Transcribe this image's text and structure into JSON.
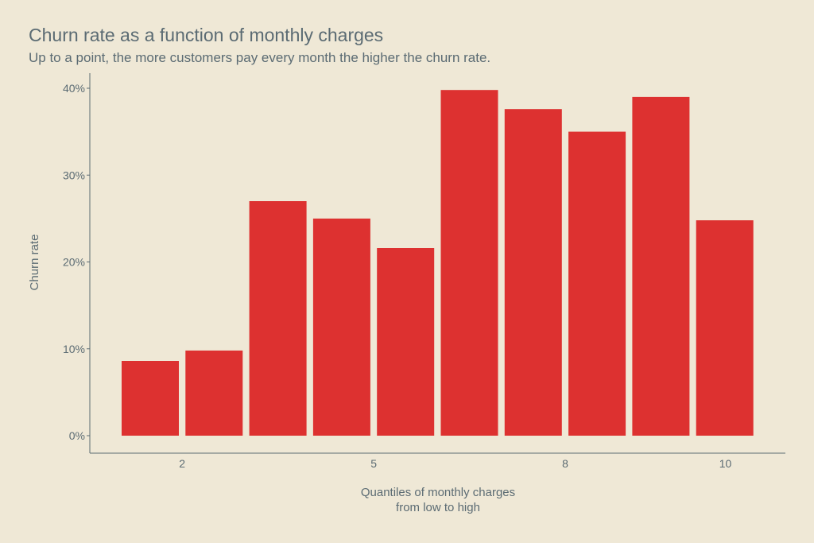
{
  "chart_data": {
    "type": "bar",
    "title": "Churn rate as a function of monthly charges",
    "subtitle": "Up to a point, the more customers pay every month the higher the churn rate.",
    "xlabel": [
      "Quantiles of monthly charges",
      "from low to high"
    ],
    "ylabel": "Churn rate",
    "x": [
      1,
      2,
      3,
      4,
      5,
      6,
      7,
      8,
      9,
      10
    ],
    "values": [
      8.6,
      9.8,
      27.0,
      25.0,
      21.6,
      39.8,
      37.6,
      35.0,
      39.0,
      24.8
    ],
    "x_ticks": [
      2,
      5,
      8,
      10
    ],
    "x_tick_labels": [
      "2",
      "5",
      "8",
      "10"
    ],
    "ylim": [
      0,
      40
    ],
    "y_ticks": [
      0,
      10,
      20,
      30,
      40
    ],
    "y_tick_labels": [
      "0%",
      "10%",
      "20%",
      "30%",
      "40%"
    ],
    "bar_color": "#dd3130",
    "grid": false,
    "legend": "none"
  }
}
